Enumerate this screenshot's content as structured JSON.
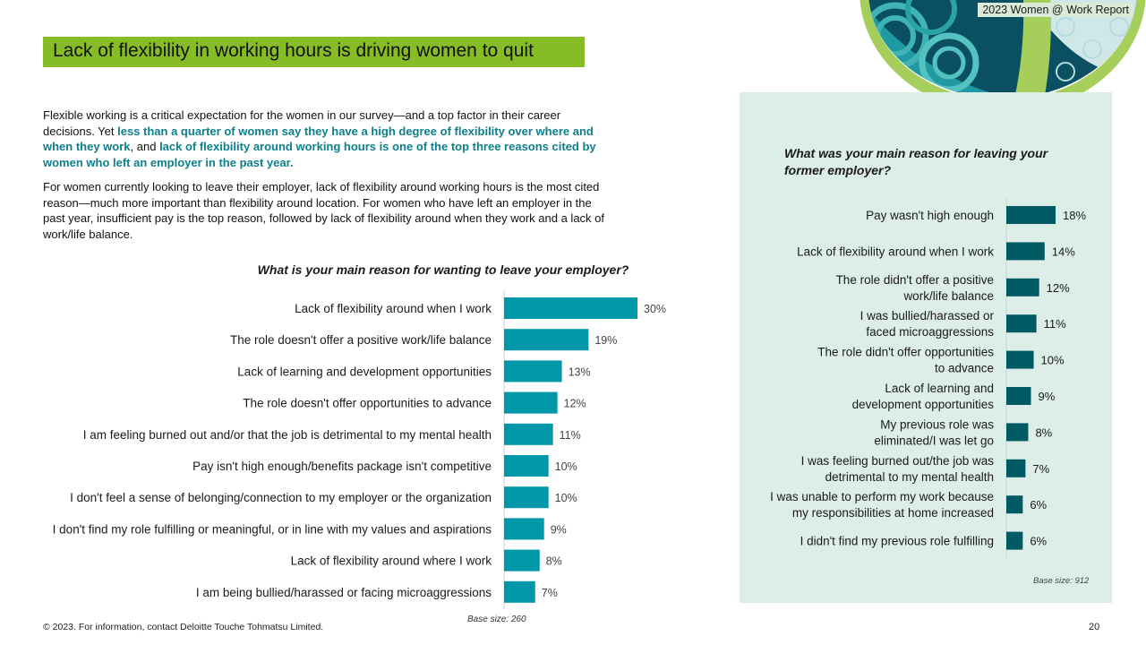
{
  "report_tag": "2023 Women @ Work Report",
  "title": "Lack of flexibility in working hours is driving women to quit",
  "intro": {
    "p1_a": "Flexible working is a critical expectation for the women in our survey—and a top factor in their career decisions. Yet ",
    "p1_b": "less than a quarter of women say they have a high degree of flexibility over where and when they work",
    "p1_c": ", and ",
    "p1_d": "lack of flexibility around working hours is one of the top three reasons cited by women who left an employer in the past year.",
    "p2": "For women currently looking to leave their employer, lack of flexibility around working hours is the most cited reason—much more important than flexibility around location. For women who have left an employer in the past year, insufficient pay is the top reason, followed by lack of flexibility around when they work and a lack of work/life balance."
  },
  "colors": {
    "accent_green": "#86bc25",
    "bar_left": "#0097a9",
    "bar_right": "#005a64",
    "panel_bg": "#ddede8"
  },
  "chart_data": [
    {
      "type": "bar",
      "orientation": "horizontal",
      "title": "What is your main reason for wanting to leave your employer?",
      "categories": [
        "Lack of flexibility around when I work",
        "The role doesn't offer a positive work/life balance",
        "Lack of learning and development opportunities",
        "The role doesn't offer opportunities to advance",
        "I am feeling burned out and/or that the job is detrimental to my mental health",
        "Pay isn't high enough/benefits package isn't competitive",
        "I don't feel a sense of belonging/connection to my employer or the organization",
        "I don't find my role fulfilling or meaningful, or in line with my values and aspirations",
        "Lack of flexibility around where I work",
        "I am being bullied/harassed or facing microaggressions"
      ],
      "values": [
        30,
        19,
        13,
        12,
        11,
        10,
        10,
        9,
        8,
        7
      ],
      "value_labels": [
        "30%",
        "19%",
        "13%",
        "12%",
        "11%",
        "10%",
        "10%",
        "9%",
        "8%",
        "7%"
      ],
      "base": "Base size: 260"
    },
    {
      "type": "bar",
      "orientation": "horizontal",
      "title": "What was your main reason for leaving your former employer?",
      "categories": [
        [
          "Pay wasn't high enough"
        ],
        [
          "Lack of flexibility around when I work"
        ],
        [
          "The role didn't offer a positive",
          "work/life balance"
        ],
        [
          "I was bullied/harassed or",
          "faced microaggressions"
        ],
        [
          "The role didn't offer opportunities",
          "to advance"
        ],
        [
          "Lack of learning and",
          "development opportunities"
        ],
        [
          "My previous role was",
          "eliminated/I was let go"
        ],
        [
          "I was feeling burned out/the job was",
          "detrimental to my mental health"
        ],
        [
          "I was unable to perform my work because",
          "my responsibilities at home increased"
        ],
        [
          "I didn't find my previous role fulfilling"
        ]
      ],
      "values": [
        18,
        14,
        12,
        11,
        10,
        9,
        8,
        7,
        6,
        6
      ],
      "value_labels": [
        "18%",
        "14%",
        "12%",
        "11%",
        "10%",
        "9%",
        "8%",
        "7%",
        "6%",
        "6%"
      ],
      "base": "Base size: 912"
    }
  ],
  "footer": "© 2023. For information, contact Deloitte Touche Tohmatsu Limited.",
  "page_number": "20"
}
